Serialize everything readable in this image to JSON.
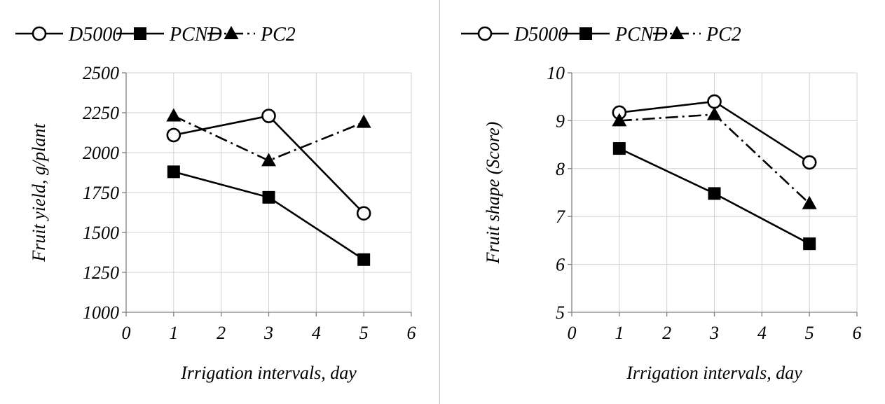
{
  "chart_data": [
    {
      "type": "line",
      "title": "",
      "xlabel": "Irrigation intervals, day",
      "ylabel": "Fruit  yield, g/plant",
      "xlim": [
        0,
        6
      ],
      "ylim": [
        1000,
        2500
      ],
      "xticks": [
        0,
        1,
        2,
        3,
        4,
        5,
        6
      ],
      "yticks": [
        1000,
        1250,
        1500,
        1750,
        2000,
        2250,
        2500
      ],
      "grid": true,
      "legend_position": "top",
      "x": [
        1,
        3,
        5
      ],
      "series": [
        {
          "name": "D5000",
          "values": [
            2110,
            2230,
            1620
          ],
          "marker": "circle-open",
          "line": "solid"
        },
        {
          "name": "PCND",
          "values": [
            1880,
            1720,
            1330
          ],
          "marker": "square",
          "line": "solid"
        },
        {
          "name": "PC2",
          "values": [
            2230,
            1950,
            2190
          ],
          "marker": "triangle",
          "line": "dash-dot"
        }
      ]
    },
    {
      "type": "line",
      "title": "",
      "xlabel": "Irrigation intervals, day",
      "ylabel": "Fruit shape (Score)",
      "xlim": [
        0,
        6
      ],
      "ylim": [
        5,
        10
      ],
      "xticks": [
        0,
        1,
        2,
        3,
        4,
        5,
        6
      ],
      "yticks": [
        5,
        6,
        7,
        8,
        9,
        10
      ],
      "grid": true,
      "legend_position": "top",
      "x": [
        1,
        3,
        5
      ],
      "series": [
        {
          "name": "D5000",
          "values": [
            9.17,
            9.4,
            8.13
          ],
          "marker": "circle-open",
          "line": "solid"
        },
        {
          "name": "PCND",
          "values": [
            8.42,
            7.48,
            6.43
          ],
          "marker": "square",
          "line": "solid"
        },
        {
          "name": "PC2",
          "values": [
            9.0,
            9.13,
            7.27
          ],
          "marker": "triangle",
          "line": "dash-dot"
        }
      ]
    }
  ]
}
